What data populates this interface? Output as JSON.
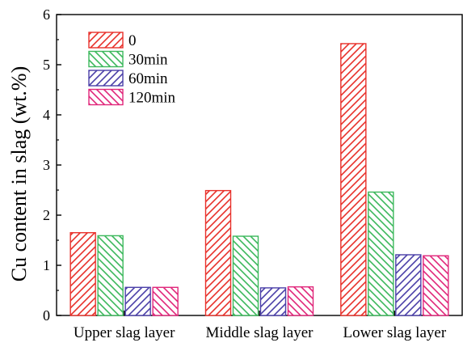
{
  "chart_data": {
    "type": "bar",
    "ylabel": "Cu content in slag (wt.%)",
    "categories": [
      "Upper slag layer",
      "Middle slag layer",
      "Lower slag layer"
    ],
    "ylim": [
      0,
      6
    ],
    "yticks": [
      0,
      1,
      2,
      3,
      4,
      5,
      6
    ],
    "legend_position": "top-left",
    "grid": false,
    "series": [
      {
        "name": "0",
        "values": [
          1.65,
          2.49,
          5.42
        ],
        "color": "#e8302a",
        "hatch": "forward-diagonal"
      },
      {
        "name": "30min",
        "values": [
          1.59,
          1.58,
          2.46
        ],
        "color": "#3cb85c",
        "hatch": "back-diagonal"
      },
      {
        "name": "60min",
        "values": [
          0.56,
          0.55,
          1.21
        ],
        "color": "#4a3fa8",
        "hatch": "forward-diagonal"
      },
      {
        "name": "120min",
        "values": [
          0.56,
          0.57,
          1.19
        ],
        "color": "#e0267a",
        "hatch": "back-diagonal"
      }
    ]
  }
}
